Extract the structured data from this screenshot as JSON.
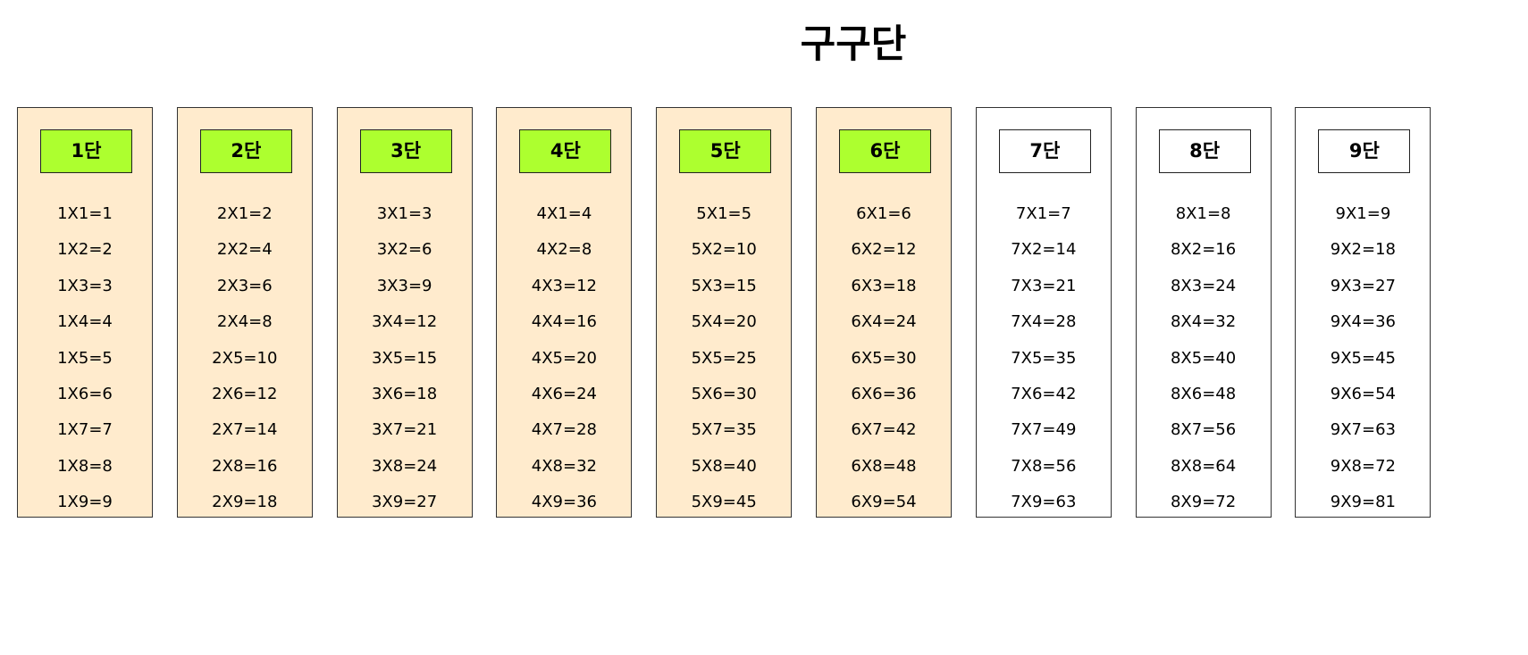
{
  "page": {
    "title": "구구단"
  },
  "colors": {
    "highlight_column_bg": "#ffebcd",
    "highlight_heading_bg": "#adff2f",
    "plain_column_bg": "#ffffff",
    "plain_heading_bg": "#ffffff"
  },
  "tables": [
    {
      "heading": "1단",
      "highlighted": true,
      "rows": [
        "1X1=1",
        "1X2=2",
        "1X3=3",
        "1X4=4",
        "1X5=5",
        "1X6=6",
        "1X7=7",
        "1X8=8",
        "1X9=9"
      ]
    },
    {
      "heading": "2단",
      "highlighted": true,
      "rows": [
        "2X1=2",
        "2X2=4",
        "2X3=6",
        "2X4=8",
        "2X5=10",
        "2X6=12",
        "2X7=14",
        "2X8=16",
        "2X9=18"
      ]
    },
    {
      "heading": "3단",
      "highlighted": true,
      "rows": [
        "3X1=3",
        "3X2=6",
        "3X3=9",
        "3X4=12",
        "3X5=15",
        "3X6=18",
        "3X7=21",
        "3X8=24",
        "3X9=27"
      ]
    },
    {
      "heading": "4단",
      "highlighted": true,
      "rows": [
        "4X1=4",
        "4X2=8",
        "4X3=12",
        "4X4=16",
        "4X5=20",
        "4X6=24",
        "4X7=28",
        "4X8=32",
        "4X9=36"
      ]
    },
    {
      "heading": "5단",
      "highlighted": true,
      "rows": [
        "5X1=5",
        "5X2=10",
        "5X3=15",
        "5X4=20",
        "5X5=25",
        "5X6=30",
        "5X7=35",
        "5X8=40",
        "5X9=45"
      ]
    },
    {
      "heading": "6단",
      "highlighted": true,
      "rows": [
        "6X1=6",
        "6X2=12",
        "6X3=18",
        "6X4=24",
        "6X5=30",
        "6X6=36",
        "6X7=42",
        "6X8=48",
        "6X9=54"
      ]
    },
    {
      "heading": "7단",
      "highlighted": false,
      "rows": [
        "7X1=7",
        "7X2=14",
        "7X3=21",
        "7X4=28",
        "7X5=35",
        "7X6=42",
        "7X7=49",
        "7X8=56",
        "7X9=63"
      ]
    },
    {
      "heading": "8단",
      "highlighted": false,
      "rows": [
        "8X1=8",
        "8X2=16",
        "8X3=24",
        "8X4=32",
        "8X5=40",
        "8X6=48",
        "8X7=56",
        "8X8=64",
        "8X9=72"
      ]
    },
    {
      "heading": "9단",
      "highlighted": false,
      "rows": [
        "9X1=9",
        "9X2=18",
        "9X3=27",
        "9X4=36",
        "9X5=45",
        "9X6=54",
        "9X7=63",
        "9X8=72",
        "9X9=81"
      ]
    }
  ]
}
